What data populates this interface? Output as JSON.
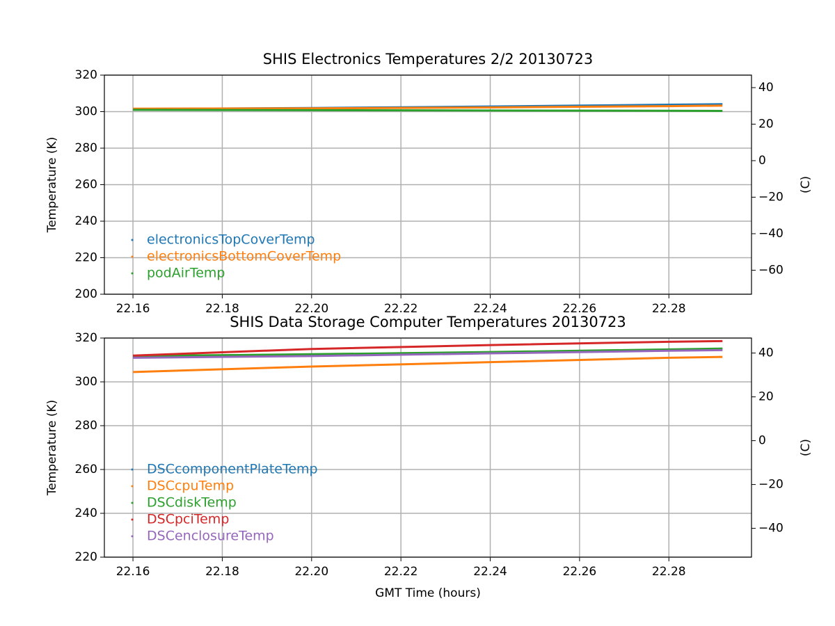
{
  "chart_data": [
    {
      "type": "line",
      "title": "SHIS Electronics Temperatures 2/2 20130723",
      "ylabel": "Temperature (K)",
      "y2label": "(C)",
      "x": [
        22.16,
        22.2,
        22.24,
        22.28,
        22.292
      ],
      "series": [
        {
          "name": "electronicsTopCoverTemp",
          "color": "#1f77b4",
          "values": [
            301.5,
            302.0,
            302.8,
            303.8,
            304.1
          ]
        },
        {
          "name": "electronicsBottomCoverTemp",
          "color": "#ff7f0e",
          "values": [
            301.6,
            301.8,
            302.3,
            303.0,
            303.3
          ]
        },
        {
          "name": "podAirTemp",
          "color": "#2ca02c",
          "values": [
            301.0,
            300.8,
            300.6,
            300.5,
            300.4
          ]
        }
      ],
      "xlim": [
        22.1536,
        22.2985
      ],
      "xticks": [
        22.16,
        22.18,
        {
          "value": 22.2,
          "label": "22.20"
        },
        22.22,
        22.24,
        22.26,
        22.28
      ],
      "ylim": [
        200,
        320
      ],
      "yticks": [
        200,
        220,
        240,
        260,
        280,
        300,
        320
      ],
      "y2lim": [
        -73.15,
        46.85
      ],
      "y2ticks": [
        {
          "value": -60,
          "label": "−60"
        },
        {
          "value": -40,
          "label": "−40"
        },
        {
          "value": -20,
          "label": "−20"
        },
        0,
        20,
        40
      ],
      "grid": true,
      "legend": "lower left"
    },
    {
      "type": "line",
      "title": "SHIS Data Storage Computer Temperatures 20130723",
      "xlabel": "GMT Time (hours)",
      "ylabel": "Temperature (K)",
      "y2label": "(C)",
      "x": [
        22.16,
        22.2,
        22.24,
        22.28,
        22.292
      ],
      "series": [
        {
          "name": "DSCcomponentPlateTemp",
          "color": "#1f77b4",
          "values": [
            311.5,
            312.3,
            313.4,
            314.6,
            314.9
          ]
        },
        {
          "name": "DSCcpuTemp",
          "color": "#ff7f0e",
          "values": [
            304.5,
            307.0,
            309.0,
            311.0,
            311.4
          ]
        },
        {
          "name": "DSCdiskTemp",
          "color": "#2ca02c",
          "values": [
            311.8,
            312.6,
            313.6,
            314.8,
            315.2
          ]
        },
        {
          "name": "DSCpciTemp",
          "color": "#d62728",
          "values": [
            312.0,
            315.0,
            316.8,
            318.3,
            318.6
          ]
        },
        {
          "name": "DSCenclosureTemp",
          "color": "#9467bd",
          "values": [
            311.0,
            311.8,
            313.0,
            314.2,
            314.5
          ]
        }
      ],
      "xlim": [
        22.1536,
        22.2985
      ],
      "xticks": [
        22.16,
        22.18,
        {
          "value": 22.2,
          "label": "22.20"
        },
        22.22,
        22.24,
        22.26,
        22.28
      ],
      "ylim": [
        220,
        320
      ],
      "yticks": [
        220,
        240,
        260,
        280,
        300,
        320
      ],
      "y2lim": [
        -53.15,
        46.85
      ],
      "y2ticks": [
        {
          "value": -40,
          "label": "−40"
        },
        {
          "value": -20,
          "label": "−20"
        },
        0,
        20,
        40
      ],
      "grid": true,
      "legend": "lower left"
    }
  ]
}
